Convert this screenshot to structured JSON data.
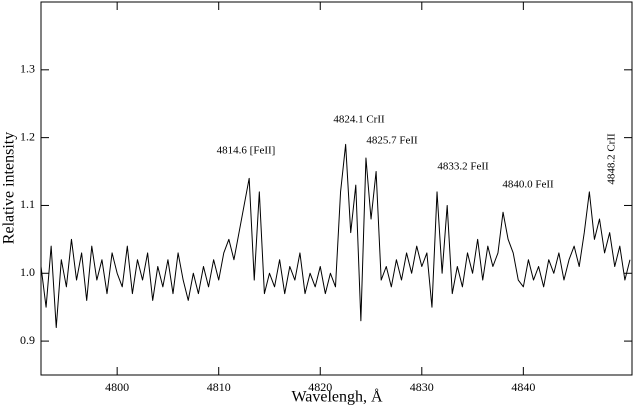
{
  "chart_data": {
    "type": "line",
    "x_label": "Wavelengh, Å",
    "y_label": "Relative intensity",
    "annotations": [
      "4814.6 [FeII]",
      "4824.1 CrII",
      "4825.7 FeII",
      "4833.2 FeII",
      "4840.0 FeII",
      "4848.2 CrII"
    ],
    "x": [
      4792.5,
      4793,
      4793.5,
      4794,
      4794.5,
      4795,
      4795.5,
      4796,
      4796.5,
      4797,
      4797.5,
      4798,
      4798.5,
      4799,
      4799.5,
      4800,
      4800.5,
      4801,
      4801.5,
      4802,
      4802.5,
      4803,
      4803.5,
      4804,
      4804.5,
      4805,
      4805.5,
      4806,
      4806.5,
      4807,
      4807.5,
      4808,
      4808.5,
      4809,
      4809.5,
      4810,
      4810.5,
      4811,
      4811.5,
      4812,
      4812.5,
      4813,
      4813.5,
      4814,
      4814.5,
      4815,
      4815.5,
      4816,
      4816.5,
      4817,
      4817.5,
      4818,
      4818.5,
      4819,
      4819.5,
      4820,
      4820.5,
      4821,
      4821.5,
      4822,
      4822.5,
      4823,
      4823.5,
      4824,
      4824.5,
      4825,
      4825.5,
      4826,
      4826.5,
      4827,
      4827.5,
      4828,
      4828.5,
      4829,
      4829.5,
      4830,
      4830.5,
      4831,
      4831.5,
      4832,
      4832.5,
      4833,
      4833.5,
      4834,
      4834.5,
      4835,
      4835.5,
      4836,
      4836.5,
      4837,
      4837.5,
      4838,
      4838.5,
      4839,
      4839.5,
      4840,
      4840.5,
      4841,
      4841.5,
      4842,
      4842.5,
      4843,
      4843.5,
      4844,
      4844.5,
      4845,
      4845.5,
      4846,
      4846.5,
      4847,
      4847.5,
      4848,
      4848.5,
      4849,
      4849.5,
      4850,
      4850.5
    ],
    "series": [
      {
        "color": "#000000",
        "values": [
          1.01,
          0.95,
          1.04,
          0.92,
          1.02,
          0.98,
          1.05,
          0.99,
          1.03,
          0.96,
          1.04,
          0.99,
          1.02,
          0.97,
          1.03,
          1.0,
          0.98,
          1.04,
          0.97,
          1.02,
          0.99,
          1.03,
          0.96,
          1.01,
          0.98,
          1.02,
          0.97,
          1.03,
          0.99,
          0.96,
          1.0,
          0.97,
          1.01,
          0.98,
          1.02,
          0.99,
          1.03,
          1.05,
          1.02,
          1.06,
          1.1,
          1.14,
          0.99,
          1.12,
          0.97,
          1.0,
          0.98,
          1.02,
          0.97,
          1.01,
          0.99,
          1.03,
          0.97,
          1.0,
          0.98,
          1.01,
          0.97,
          1.0,
          0.98,
          1.12,
          1.19,
          1.06,
          1.13,
          0.93,
          1.17,
          1.08,
          1.15,
          0.99,
          1.01,
          0.98,
          1.02,
          0.99,
          1.03,
          1.0,
          1.04,
          1.01,
          1.03,
          0.95,
          1.12,
          1.0,
          1.1,
          0.97,
          1.01,
          0.98,
          1.03,
          1.0,
          1.05,
          0.99,
          1.04,
          1.01,
          1.03,
          1.09,
          1.05,
          1.03,
          0.99,
          0.98,
          1.02,
          0.99,
          1.01,
          0.98,
          1.02,
          1.0,
          1.03,
          0.99,
          1.02,
          1.04,
          1.01,
          1.06,
          1.12,
          1.05,
          1.08,
          1.03,
          1.06,
          1.01,
          1.04,
          0.99,
          1.02
        ]
      }
    ],
    "xlim": [
      4792.5,
      4850.7
    ],
    "ylim": [
      0.85,
      1.4
    ],
    "xticks": [
      4800,
      4810,
      4820,
      4830,
      4840
    ],
    "yticks": [
      0.9,
      {
        "value": 1,
        "label": "1.0"
      },
      1.1,
      1.2,
      1.3
    ],
    "grid": false
  }
}
